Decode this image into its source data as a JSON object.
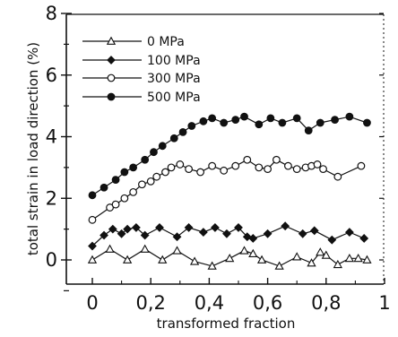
{
  "chart_data": {
    "type": "line",
    "xlabel": "transformed fraction",
    "ylabel": "total strain in load direction  (%)",
    "xlim": [
      0,
      1
    ],
    "ylim": [
      -1,
      8
    ],
    "xticks": [
      0,
      0.2,
      0.4,
      0.6,
      0.8,
      1
    ],
    "xtick_labels": [
      "0",
      "0,2",
      "0,4",
      "0,6",
      "0,8",
      "1"
    ],
    "yticks": [
      0,
      2,
      4,
      6,
      8
    ],
    "ytick_labels": [
      "0",
      "2",
      "4",
      "6",
      "8"
    ],
    "grid": false,
    "legend_position": "top-left",
    "series": [
      {
        "name": "0 MPa",
        "marker": "open-triangle",
        "x": [
          0.0,
          0.06,
          0.12,
          0.18,
          0.24,
          0.29,
          0.35,
          0.41,
          0.47,
          0.52,
          0.55,
          0.58,
          0.64,
          0.7,
          0.75,
          0.78,
          0.8,
          0.84,
          0.88,
          0.91,
          0.94
        ],
        "values": [
          0.0,
          0.35,
          0.0,
          0.35,
          0.0,
          0.3,
          -0.05,
          -0.2,
          0.05,
          0.3,
          0.2,
          0.0,
          -0.2,
          0.1,
          -0.1,
          0.25,
          0.15,
          -0.15,
          0.05,
          0.05,
          0.0
        ]
      },
      {
        "name": "100  MPa",
        "marker": "filled-diamond",
        "x": [
          0.0,
          0.04,
          0.07,
          0.1,
          0.12,
          0.15,
          0.18,
          0.23,
          0.29,
          0.33,
          0.38,
          0.42,
          0.46,
          0.5,
          0.53,
          0.55,
          0.6,
          0.66,
          0.72,
          0.76,
          0.82,
          0.88,
          0.93
        ],
        "values": [
          0.45,
          0.8,
          1.0,
          0.85,
          1.0,
          1.05,
          0.8,
          1.05,
          0.75,
          1.05,
          0.9,
          1.05,
          0.85,
          1.05,
          0.75,
          0.7,
          0.85,
          1.1,
          0.85,
          0.95,
          0.65,
          0.9,
          0.7
        ]
      },
      {
        "name": "300  MPa",
        "marker": "open-circle",
        "x": [
          0.0,
          0.06,
          0.08,
          0.11,
          0.14,
          0.17,
          0.2,
          0.22,
          0.25,
          0.27,
          0.3,
          0.33,
          0.37,
          0.41,
          0.45,
          0.49,
          0.53,
          0.57,
          0.6,
          0.63,
          0.67,
          0.7,
          0.73,
          0.75,
          0.77,
          0.79,
          0.84,
          0.92
        ],
        "values": [
          1.3,
          1.7,
          1.8,
          2.0,
          2.2,
          2.45,
          2.55,
          2.7,
          2.85,
          3.0,
          3.1,
          2.95,
          2.85,
          3.05,
          2.9,
          3.05,
          3.25,
          3.0,
          2.95,
          3.25,
          3.05,
          2.95,
          3.0,
          3.05,
          3.1,
          2.95,
          2.7,
          3.05
        ]
      },
      {
        "name": "500  MPa",
        "marker": "filled-circle",
        "x": [
          0.0,
          0.04,
          0.08,
          0.11,
          0.14,
          0.18,
          0.21,
          0.24,
          0.28,
          0.31,
          0.34,
          0.38,
          0.41,
          0.45,
          0.49,
          0.52,
          0.57,
          0.61,
          0.65,
          0.7,
          0.74,
          0.78,
          0.83,
          0.88,
          0.94
        ],
        "values": [
          2.1,
          2.35,
          2.6,
          2.85,
          3.0,
          3.25,
          3.5,
          3.7,
          3.95,
          4.15,
          4.35,
          4.5,
          4.6,
          4.45,
          4.55,
          4.65,
          4.4,
          4.6,
          4.45,
          4.6,
          4.2,
          4.45,
          4.55,
          4.65,
          4.45
        ]
      }
    ]
  }
}
